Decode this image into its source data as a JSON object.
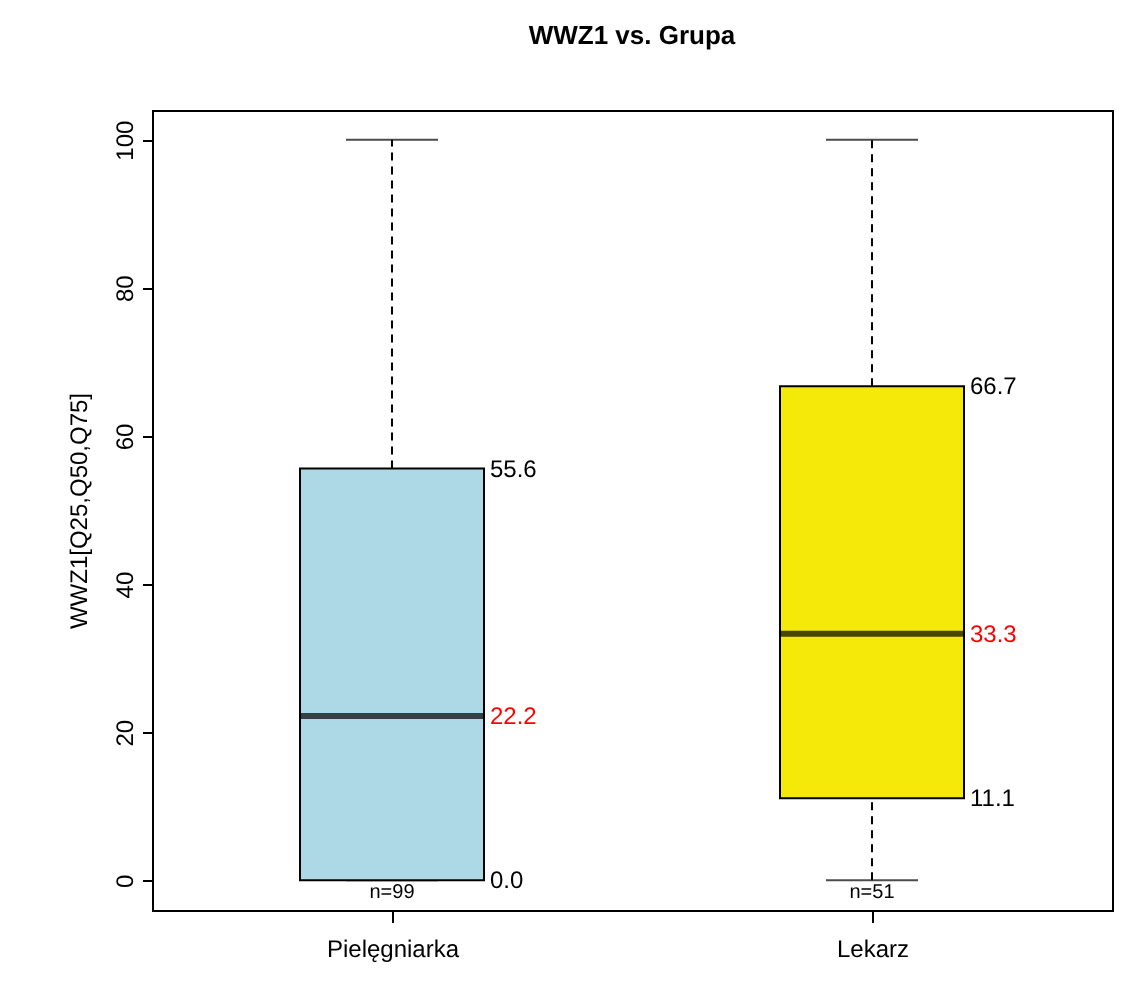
{
  "chart_data": {
    "type": "box",
    "title": "WWZ1 vs. Grupa",
    "ylabel": "WWZ1[Q25,Q50,Q75]",
    "categories": [
      "Pielęgniarka",
      "Lekarz"
    ],
    "boxes": [
      {
        "low": 0,
        "q1": 0,
        "median": 22.2,
        "q3": 55.6,
        "high": 100
      },
      {
        "low": 0,
        "q1": 11.1,
        "median": 33.3,
        "q3": 66.7,
        "high": 100
      }
    ],
    "colors": [
      "#add8e6",
      "#f5e90a"
    ],
    "ylim": [
      -4,
      104
    ],
    "yticks": [
      0,
      20,
      40,
      60,
      80,
      100
    ],
    "annotations": [
      "55.6",
      "22.2",
      "0.0",
      "66.7",
      "33.3",
      "11.1",
      {
        "text": "n=99",
        "x": "Pielęgniarka",
        "y": 0
      },
      {
        "text": "n=51",
        "x": "Lekarz",
        "y": 0
      }
    ]
  }
}
